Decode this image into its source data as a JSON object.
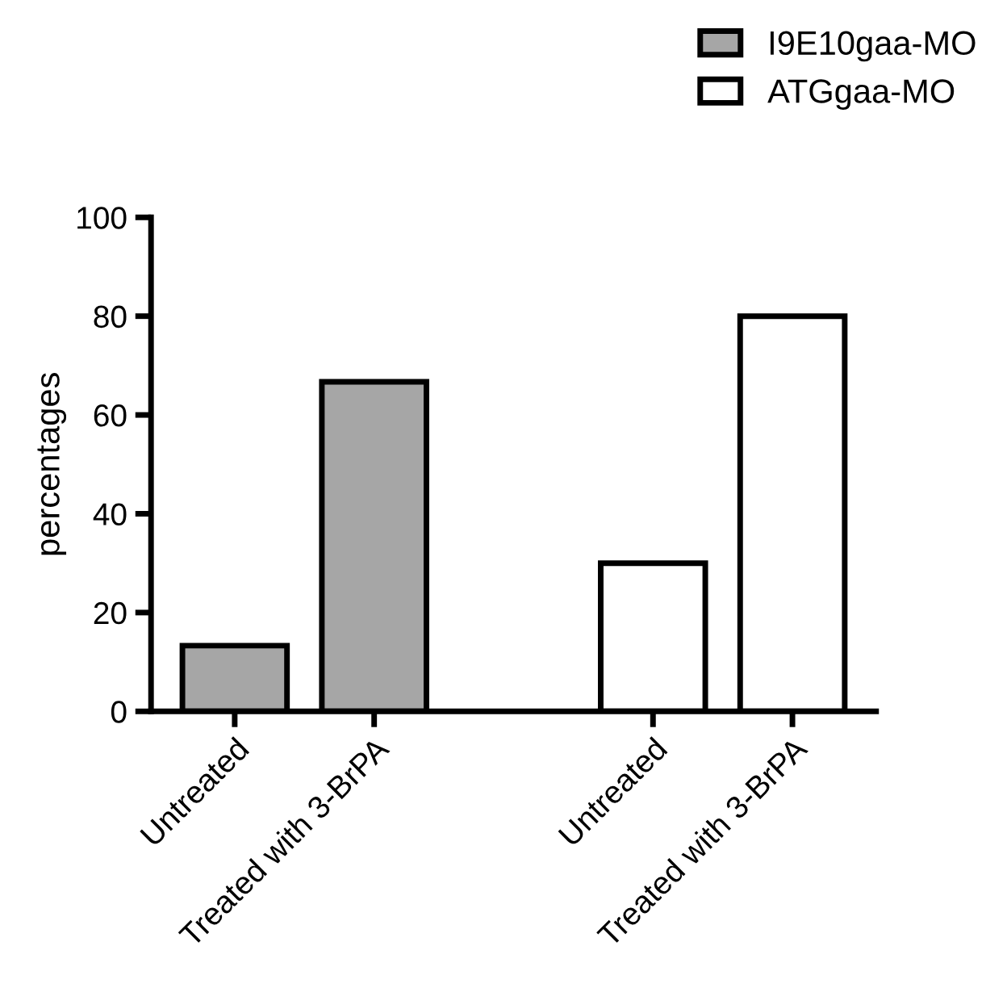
{
  "chart_data": {
    "type": "bar",
    "ylabel": "percentages",
    "categories": [
      "Untreated",
      "Treated with 3-BrPA",
      null,
      "Untreated",
      "Treated with 3-BrPA"
    ],
    "series": [
      {
        "name": "I9E10gaa-MO",
        "color": "#a6a6a6",
        "values": [
          13.3,
          66.7,
          null,
          null,
          null
        ]
      },
      {
        "name": "ATGgaa-MO",
        "color": "#ffffff",
        "values": [
          null,
          null,
          null,
          30,
          80
        ]
      }
    ],
    "ylim": [
      0,
      100
    ],
    "yticks": [
      0,
      20,
      40,
      60,
      80,
      100
    ],
    "grid": false,
    "legend": "top right"
  }
}
